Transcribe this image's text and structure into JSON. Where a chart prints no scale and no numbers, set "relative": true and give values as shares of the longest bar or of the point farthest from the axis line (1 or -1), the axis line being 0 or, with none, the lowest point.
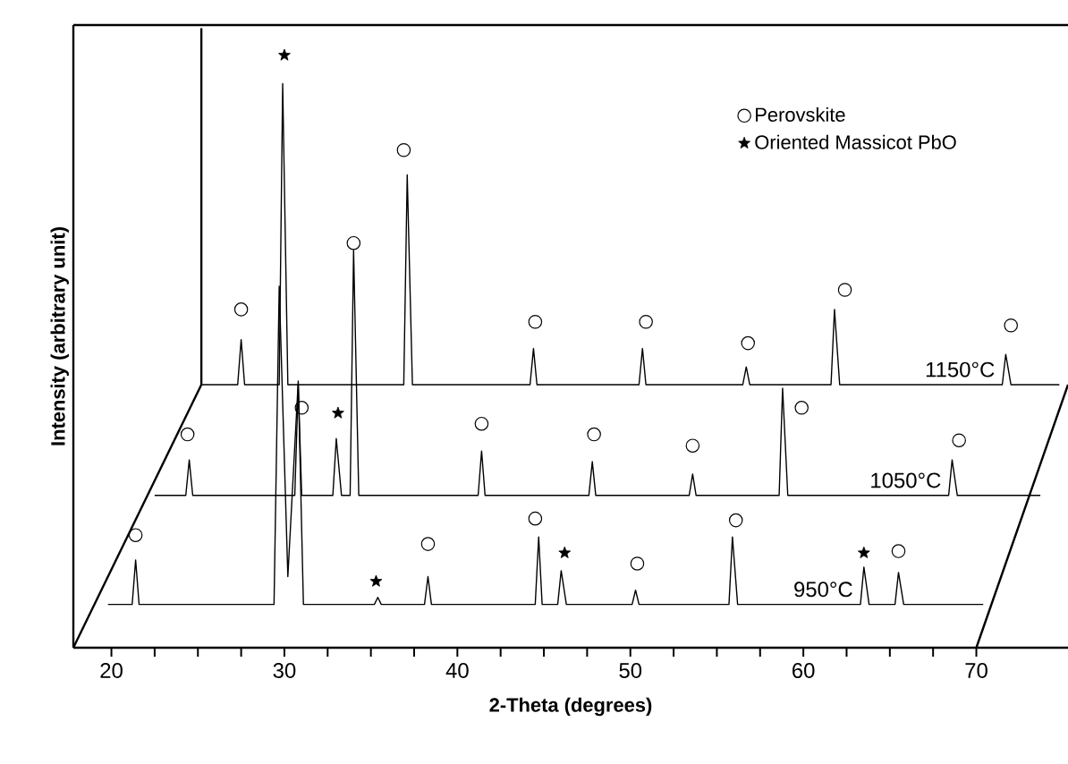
{
  "chart_data": {
    "type": "line",
    "relative": true,
    "xlabel": "2-Theta (degrees)",
    "ylabel": "Intensity (arbitrary unit)",
    "xlim": [
      17.8,
      75.3
    ],
    "xticks": [
      20,
      {
        "value": 22.5,
        "label": null
      },
      {
        "value": 25,
        "label": null
      },
      {
        "value": 27.5,
        "label": null
      },
      30,
      {
        "value": 32.5,
        "label": null
      },
      {
        "value": 35,
        "label": null
      },
      {
        "value": 37.5,
        "label": null
      },
      40,
      {
        "value": 42.5,
        "label": null
      },
      {
        "value": 45,
        "label": null
      },
      {
        "value": 47.5,
        "label": null
      },
      50,
      {
        "value": 52.5,
        "label": null
      },
      {
        "value": 55,
        "label": null
      },
      {
        "value": 57.5,
        "label": null
      },
      60,
      {
        "value": 62.5,
        "label": null
      },
      {
        "value": 65,
        "label": null
      },
      {
        "value": 67.5,
        "label": null
      },
      70
    ],
    "legend": "top",
    "ref_lines": [
      {
        "axis": "x",
        "value": 25.2
      }
    ],
    "series": [
      {
        "name": "950°C",
        "color": "#000000",
        "marker": "none",
        "x": [
          19.8,
          21.2,
          21.4,
          21.6,
          29.4,
          29.7,
          30.2,
          30.8,
          31.1,
          35.2,
          35.4,
          35.6,
          38.1,
          38.3,
          38.5,
          44.5,
          44.7,
          44.9,
          45.8,
          46.0,
          46.3,
          50.1,
          50.3,
          50.5,
          55.7,
          55.9,
          56.2,
          63.3,
          63.5,
          63.8,
          65.3,
          65.5,
          65.8,
          70.4
        ],
        "values": [
          0.073,
          0.073,
          0.148,
          0.073,
          0.073,
          0.61,
          0.12,
          0.45,
          0.073,
          0.073,
          0.085,
          0.073,
          0.073,
          0.12,
          0.073,
          0.073,
          0.187,
          0.073,
          0.073,
          0.13,
          0.073,
          0.073,
          0.097,
          0.073,
          0.073,
          0.187,
          0.073,
          0.073,
          0.136,
          0.073,
          0.073,
          0.127,
          0.073,
          0.073
        ]
      },
      {
        "name": "1050°C",
        "color": "#000000",
        "marker": "none",
        "x": [
          22.5,
          24.3,
          24.5,
          24.7,
          30.6,
          30.8,
          31.0,
          32.8,
          33.0,
          33.3,
          33.8,
          34.0,
          34.3,
          41.2,
          41.4,
          41.6,
          47.6,
          47.8,
          48.0,
          53.4,
          53.6,
          53.8,
          58.6,
          58.8,
          59.1,
          68.4,
          68.6,
          68.9,
          73.7
        ],
        "values": [
          0.257,
          0.257,
          0.317,
          0.257,
          0.257,
          0.444,
          0.257,
          0.257,
          0.353,
          0.257,
          0.257,
          0.671,
          0.257,
          0.257,
          0.332,
          0.257,
          0.257,
          0.314,
          0.257,
          0.257,
          0.293,
          0.257,
          0.257,
          0.438,
          0.257,
          0.257,
          0.317,
          0.257,
          0.257
        ]
      },
      {
        "name": "1150°C",
        "color": "#000000",
        "marker": "none",
        "x": [
          25.2,
          27.3,
          27.5,
          27.7,
          29.7,
          29.9,
          30.2,
          36.9,
          37.1,
          37.4,
          44.2,
          44.4,
          44.6,
          50.5,
          50.7,
          50.9,
          56.5,
          56.7,
          56.9,
          61.6,
          61.8,
          62.1,
          71.5,
          71.7,
          72.0,
          74.8
        ],
        "values": [
          0.444,
          0.444,
          0.52,
          0.444,
          0.444,
          0.952,
          0.444,
          0.444,
          0.798,
          0.444,
          0.444,
          0.505,
          0.444,
          0.444,
          0.505,
          0.444,
          0.444,
          0.474,
          0.444,
          0.444,
          0.571,
          0.444,
          0.444,
          0.495,
          0.444,
          0.444
        ]
      },
      {
        "name": "Perovskite",
        "type": "scatter",
        "marker": "circle",
        "color": "#000000",
        "x": [
          21.4,
          38.3,
          44.5,
          50.4,
          56.1,
          65.5,
          24.4,
          31.0,
          34.0,
          41.4,
          47.9,
          53.6,
          59.9,
          69.0,
          27.5,
          36.9,
          44.5,
          50.9,
          56.8,
          62.4,
          72.0
        ],
        "values": [
          0.19,
          0.175,
          0.218,
          0.142,
          0.215,
          0.163,
          0.36,
          0.405,
          0.683,
          0.378,
          0.36,
          0.341,
          0.405,
          0.35,
          0.571,
          0.84,
          0.55,
          0.55,
          0.514,
          0.604,
          0.544
        ]
      },
      {
        "name": "Oriented Massicot PbO",
        "type": "scatter",
        "marker": "star",
        "color": "#000000",
        "x": [
          35.3,
          46.2,
          63.5,
          33.1,
          30.0
        ],
        "values": [
          0.112,
          0.16,
          0.16,
          0.396,
          1.0
        ]
      }
    ]
  }
}
